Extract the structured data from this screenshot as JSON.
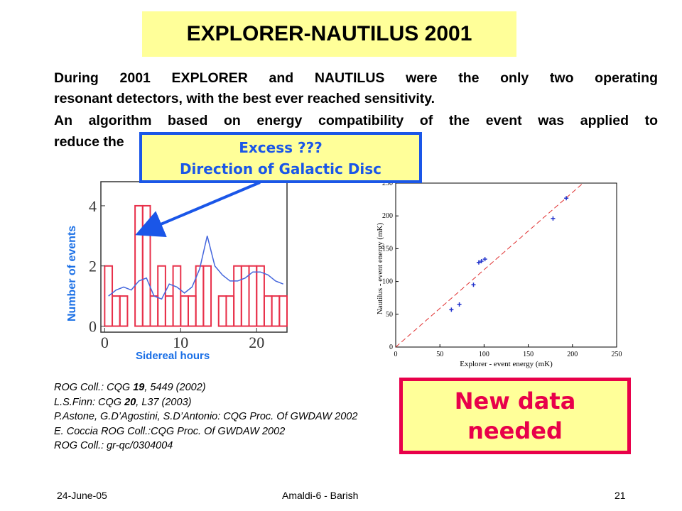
{
  "title": "EXPLORER-NAUTILUS 2001",
  "paragraph1": "During 2001 EXPLORER and NAUTILUS were the only two operating resonant detectors, with the best ever reached sensitivity.",
  "paragraph1_line1": "During 2001 EXPLORER and NAUTILUS were the only two operating",
  "paragraph1_line2": "resonant detectors, with the best ever reached sensitivity.",
  "paragraph2_line1": "An algorithm based on energy compatibility of the event was applied to",
  "paragraph2_line2": "reduce the",
  "callout": {
    "line1": "Excess ???",
    "line2": "Direction of Galactic Disc"
  },
  "references": [
    {
      "pre": "ROG Coll.: CQG ",
      "bold": "19",
      "post": ", 5449 (2002)"
    },
    {
      "pre": "L.S.Finn: CQG ",
      "bold": "20",
      "post": ", L37 (2003)"
    },
    {
      "pre": "P.Astone, G.D’Agostini, S.D’Antonio: CQG Proc. Of GWDAW 2002",
      "bold": "",
      "post": ""
    },
    {
      "pre": "E. Coccia ROG Coll.:CQG Proc. Of GWDAW 2002",
      "bold": "",
      "post": ""
    },
    {
      "pre": "ROG Coll.: gr-qc/0304004",
      "bold": "",
      "post": ""
    }
  ],
  "new_data": {
    "line1": "New data",
    "line2": "needed"
  },
  "footer": {
    "date": "24-June-05",
    "center": "Amaldi-6 -  Barish",
    "page": "21"
  },
  "colors": {
    "title_bg": "#ffff99",
    "callout_border": "#1a56e8",
    "new_data_border": "#e8004a",
    "bars": "#e8304a",
    "curve": "#4466dd",
    "axis_label": "#1a6fe6"
  },
  "chart_data": [
    {
      "type": "bar",
      "xlabel": "Sidereal hours",
      "ylabel": "Number of events",
      "xticks": [
        0,
        10,
        20
      ],
      "yticks": [
        0,
        2,
        4
      ],
      "xlim": [
        -0.5,
        24
      ],
      "ylim": [
        -0.2,
        4.8
      ],
      "bins_start": [
        0,
        1,
        2,
        3,
        4,
        5,
        6,
        7,
        8,
        9,
        10,
        11,
        12,
        13,
        14,
        15,
        16,
        17,
        18,
        19,
        20,
        21,
        22,
        23
      ],
      "values": [
        2,
        1,
        1,
        0,
        4,
        4,
        1,
        2,
        1,
        2,
        1,
        1,
        2,
        2,
        0,
        1,
        1,
        2,
        2,
        2,
        2,
        1,
        1,
        1
      ],
      "curve": {
        "x": [
          0.5,
          1.5,
          2.5,
          3.5,
          4.5,
          5.5,
          6.5,
          7.5,
          8.5,
          9.5,
          10.5,
          11.5,
          12.5,
          13.5,
          14.5,
          15.5,
          16.5,
          17.5,
          18.5,
          19.5,
          20.5,
          21.5,
          22.5,
          23.5
        ],
        "y": [
          1.0,
          1.2,
          1.3,
          1.2,
          1.5,
          1.6,
          1.0,
          0.9,
          1.4,
          1.3,
          1.1,
          1.3,
          1.9,
          3.0,
          2.0,
          1.7,
          1.5,
          1.5,
          1.6,
          1.8,
          1.8,
          1.7,
          1.5,
          1.4
        ]
      }
    },
    {
      "type": "scatter",
      "xlabel": "Explorer - event energy (mK)",
      "ylabel": "Nautilus - event energy (mK)",
      "xlim": [
        0,
        250
      ],
      "ylim": [
        0,
        250
      ],
      "xticks": [
        0,
        50,
        100,
        150,
        200,
        250
      ],
      "yticks": [
        0,
        50,
        100,
        150,
        200,
        250
      ],
      "points": [
        [
          63,
          57
        ],
        [
          72,
          65
        ],
        [
          88,
          95
        ],
        [
          94,
          129
        ],
        [
          97,
          131
        ],
        [
          101,
          134
        ],
        [
          178,
          196
        ],
        [
          193,
          227
        ]
      ],
      "line": {
        "x": [
          0,
          212
        ],
        "y": [
          0,
          250
        ]
      }
    }
  ]
}
